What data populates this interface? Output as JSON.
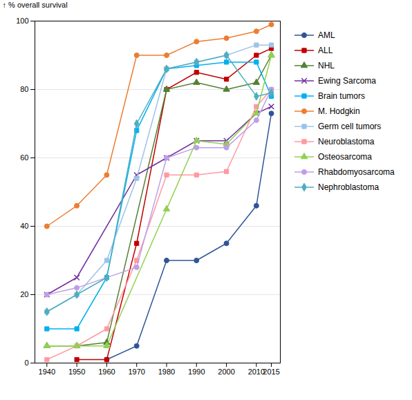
{
  "chart_data": {
    "type": "line",
    "ylabel": "% overall survival",
    "x": [
      1940,
      1950,
      1960,
      1970,
      1980,
      1990,
      2000,
      2010,
      2015
    ],
    "series": [
      {
        "name": "AML",
        "color": "#2F5597",
        "marker": "circle",
        "values": [
          null,
          null,
          1,
          5,
          30,
          30,
          35,
          46,
          73
        ]
      },
      {
        "name": "ALL",
        "color": "#C00000",
        "marker": "square",
        "values": [
          null,
          1,
          1,
          35,
          80,
          85,
          83,
          90,
          92
        ]
      },
      {
        "name": "NHL",
        "color": "#538135",
        "marker": "triangle",
        "values": [
          5,
          5,
          6,
          null,
          80,
          82,
          80,
          82,
          90
        ]
      },
      {
        "name": "Ewing Sarcoma",
        "color": "#7030A0",
        "marker": "times",
        "values": [
          20,
          25,
          null,
          55,
          60,
          65,
          65,
          73,
          75
        ]
      },
      {
        "name": "Brain tumors",
        "color": "#00B0F0",
        "marker": "square",
        "values": [
          10,
          10,
          25,
          68,
          86,
          87,
          88,
          88,
          78
        ]
      },
      {
        "name": "M. Hodgkin",
        "color": "#ED7D31",
        "marker": "circle",
        "values": [
          40,
          46,
          55,
          90,
          90,
          94,
          95,
          97,
          99
        ]
      },
      {
        "name": "Germ cell tumors",
        "color": "#9DC3E6",
        "marker": "square",
        "values": [
          15,
          20,
          30,
          54,
          86,
          88,
          90,
          93,
          93
        ]
      },
      {
        "name": "Neuroblastoma",
        "color": "#FF99A0",
        "marker": "square",
        "values": [
          1,
          5,
          10,
          30,
          55,
          55,
          56,
          75,
          80
        ]
      },
      {
        "name": "Osteosarcoma",
        "color": "#92D050",
        "marker": "triangle",
        "values": [
          5,
          5,
          5,
          null,
          45,
          65,
          64,
          73,
          90
        ]
      },
      {
        "name": "Rhabdomyosarcoma",
        "color": "#BF9EE8",
        "marker": "circle",
        "values": [
          20,
          22,
          null,
          28,
          60,
          63,
          63,
          71,
          80
        ]
      },
      {
        "name": "Nephroblastoma",
        "color": "#4EAEC0",
        "marker": "diamond",
        "values": [
          15,
          20,
          25,
          70,
          86,
          88,
          90,
          78,
          79
        ]
      }
    ],
    "xlim": [
      1936,
      2018
    ],
    "ylim": [
      0,
      100
    ],
    "xticks": [
      1940,
      1950,
      1960,
      1970,
      1980,
      1990,
      2000,
      2010,
      2015
    ],
    "yticks": [
      0,
      20,
      40,
      60,
      80,
      100
    ],
    "grid": true,
    "legend": "right"
  }
}
